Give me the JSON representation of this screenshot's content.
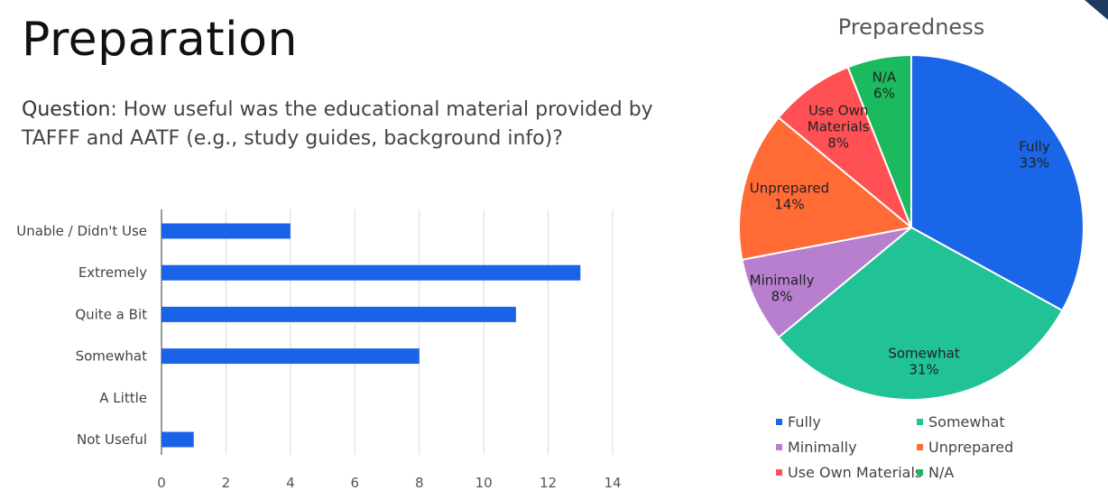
{
  "page": {
    "title": "Preparation",
    "question_label": "Question",
    "question_text": ": How useful was the educational material provided by TAFFF and AATF  (e.g., study guides, background info)?"
  },
  "chart_data": [
    {
      "type": "bar",
      "orientation": "horizontal",
      "title": "",
      "categories": [
        "Unable / Didn't Use",
        "Extremely",
        "Quite a Bit",
        "Somewhat",
        "A Little",
        "Not Useful"
      ],
      "values": [
        4,
        13,
        11,
        8,
        0,
        1
      ],
      "xlim": [
        0,
        14
      ],
      "xticks": [
        0,
        2,
        4,
        6,
        8,
        10,
        12,
        14
      ],
      "grid": true,
      "color": "#1a63e8"
    },
    {
      "type": "pie",
      "title": "Preparedness",
      "labels": [
        "Fully",
        "Somewhat",
        "Minimally",
        "Unprepared",
        "Use Own Materials",
        "N/A"
      ],
      "slice_labels": [
        [
          "Fully"
        ],
        [
          "Somewhat"
        ],
        [
          "Minimally"
        ],
        [
          "Unprepared"
        ],
        [
          "Use Own",
          "Materials"
        ],
        [
          "N/A"
        ]
      ],
      "values": [
        33,
        31,
        8,
        14,
        8,
        6
      ],
      "percent_labels": [
        "33%",
        "31%",
        "8%",
        "14%",
        "8%",
        "6%"
      ],
      "colors": [
        "#1a66e8",
        "#20c296",
        "#b77fce",
        "#ff6a35",
        "#ff5053",
        "#1bba5e"
      ],
      "legend_position": "bottom"
    }
  ]
}
